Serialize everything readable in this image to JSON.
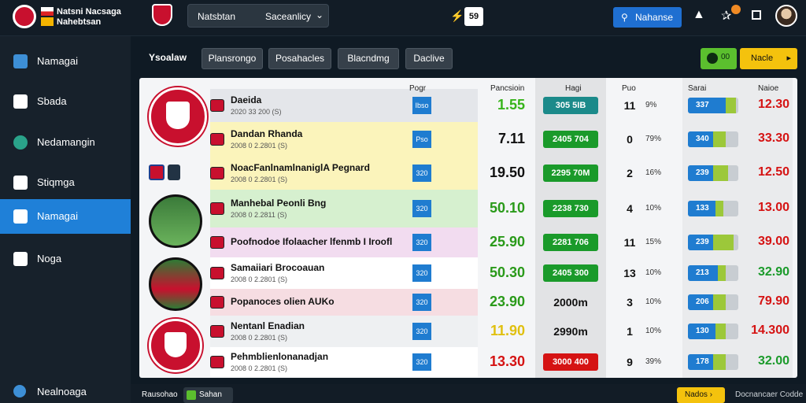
{
  "app": {
    "title": "Natsni Nacsaga Nahebtsan",
    "search": {
      "left": "Natsbtan",
      "right": "Saceanlicy"
    },
    "counter": "59",
    "action_button": "Nahanse",
    "accent": "#1f80d8"
  },
  "sidebar": {
    "items": [
      {
        "label": "Namagai",
        "icon": "cube-icon"
      },
      {
        "label": "Sbada",
        "icon": "calendar-icon"
      },
      {
        "label": "Nedamangin",
        "icon": "globe-icon"
      },
      {
        "label": "Stiqmga",
        "icon": "chart-icon"
      },
      {
        "label": "Namagai",
        "icon": "shirt-icon",
        "active": true
      },
      {
        "label": "Noga",
        "icon": "box-icon"
      }
    ],
    "footer": "Nealnoaga"
  },
  "tabs": {
    "title": "Ysoalaw",
    "items": [
      "Plansrongo",
      "Posahacles",
      "Blacndmg",
      "Daclive"
    ],
    "toggle_label": "00",
    "cta": "Nacle"
  },
  "table": {
    "headers": [
      "Pogr",
      "Pancsioin",
      "Hagi",
      "Puo",
      "Sarai",
      "Naioe"
    ],
    "rows": [
      {
        "name": "Daeida",
        "sub": "2020 33 200 (S)",
        "pos": "Ibso",
        "rating": "1.55",
        "rating_color": "#37b41a",
        "value": "305 5IB",
        "value_color": "#1b8a8a",
        "num": "11",
        "pct": "9%",
        "bar": "337",
        "score": "12.30",
        "score_color": "#d51313",
        "row_bg": "#e4e6ea"
      },
      {
        "name": "Dandan Rhanda",
        "sub": "2008 0 2.2801 (S)",
        "pos": "Pso",
        "rating": "7.11",
        "rating_color": "#111111",
        "value": "2405 704",
        "value_color": "#1a9a2a",
        "num": "0",
        "pct": "79%",
        "bar": "340",
        "score": "33.30",
        "score_color": "#d51313",
        "row_bg": "#fbf4bb"
      },
      {
        "name": "NoacFanlnamlnaniglA Pegnard",
        "sub": "2008 0 2.2801 (S)",
        "pos": "320",
        "rating": "19.50",
        "rating_color": "#111111",
        "value": "2295 70M",
        "value_color": "#1a9a2a",
        "num": "2",
        "pct": "16%",
        "bar": "239",
        "score": "12.50",
        "score_color": "#d51313",
        "row_bg": "#fbf4bb"
      },
      {
        "name": "Manhebal Peonli Bng",
        "sub": "2008 0 2.2811 (S)",
        "pos": "320",
        "rating": "50.10",
        "rating_color": "#2a9a1a",
        "value": "2238 730",
        "value_color": "#1a9a2a",
        "num": "4",
        "pct": "10%",
        "bar": "133",
        "score": "13.00",
        "score_color": "#d51313",
        "row_bg": "#d6f0cf"
      },
      {
        "name": "Poofnodoe Ifolaacher lfenmb I Iroofl",
        "sub": "",
        "pos": "320",
        "rating": "25.90",
        "rating_color": "#2a9a1a",
        "value": "2281 706",
        "value_color": "#1a9a2a",
        "num": "11",
        "pct": "15%",
        "bar": "239",
        "score": "39.00",
        "score_color": "#d51313",
        "row_bg": "#f2dcf0"
      },
      {
        "name": "Samaiiari Brocoauan",
        "sub": "2008 0 2.2801 (S)",
        "pos": "320",
        "rating": "50.30",
        "rating_color": "#2a9a1a",
        "value": "2405 300",
        "value_color": "#1a9a2a",
        "num": "13",
        "pct": "10%",
        "bar": "213",
        "score": "32.90",
        "score_color": "#1a9a2a",
        "row_bg": "#ffffff"
      },
      {
        "name": "Popanoces olien AUKo",
        "sub": "",
        "pos": "320",
        "rating": "23.90",
        "rating_color": "#2a9a1a",
        "value": "2000m",
        "value_color": "",
        "num": "3",
        "pct": "10%",
        "bar": "206",
        "score": "79.90",
        "score_color": "#d51313",
        "row_bg": "#f6dde2"
      },
      {
        "name": "Nentanl Enadian",
        "sub": "2008 0 2.2801 (S)",
        "pos": "320",
        "rating": "11.90",
        "rating_color": "#e0c010",
        "value": "2990m",
        "value_color": "",
        "num": "1",
        "pct": "10%",
        "bar": "130",
        "score": "14.300",
        "score_color": "#d51313",
        "row_bg": "#eef0f2"
      },
      {
        "name": "Pehmblienlonanadjan",
        "sub": "2008 0 2.2801 (S)",
        "pos": "320",
        "rating": "13.30",
        "rating_color": "#d51313",
        "value": "3000 400",
        "value_color": "#d51313",
        "num": "9",
        "pct": "39%",
        "bar": "178",
        "score": "32.00",
        "score_color": "#1a9a2a",
        "row_bg": "#ffffff"
      }
    ]
  },
  "footer": {
    "left": "Rausohao",
    "status": "Sahan",
    "next": "Nados",
    "right": "Docnancaer Codde"
  }
}
